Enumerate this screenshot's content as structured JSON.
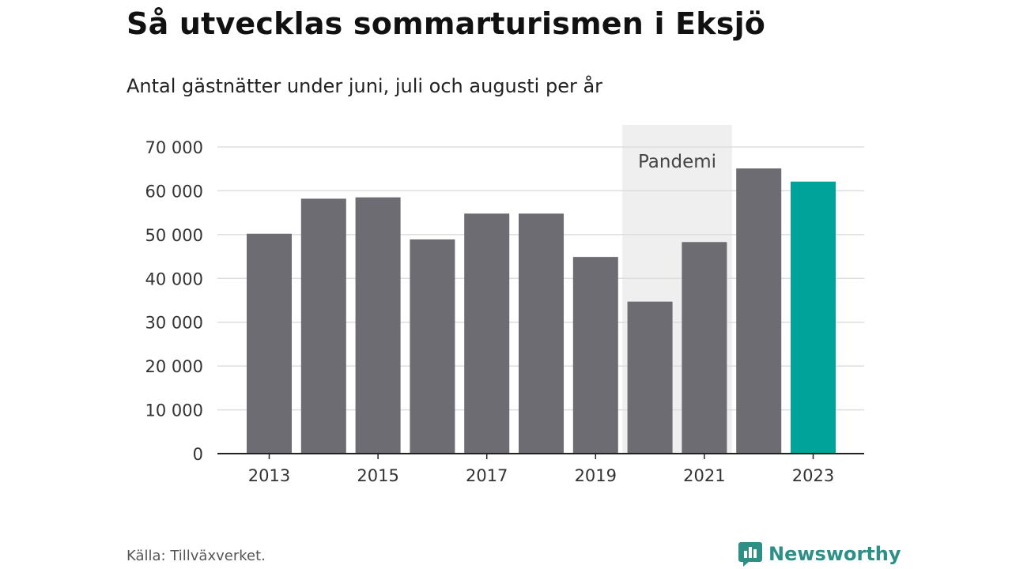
{
  "header": {
    "title": "Så utvecklas sommarturismen i Eksjö",
    "subtitle": "Antal gästnätter under juni, juli och augusti per år"
  },
  "footer": {
    "source": "Källa: Tillväxverket.",
    "brand": "Newsworthy"
  },
  "colors": {
    "bar": "#6d6c72",
    "highlight": "#00a39a",
    "shade": "#efefef",
    "grid": "#dddddd",
    "axis": "#222222",
    "brand": "#2e8f86"
  },
  "chart_data": {
    "type": "bar",
    "title": "Så utvecklas sommarturismen i Eksjö",
    "subtitle": "Antal gästnätter under juni, juli och augusti per år",
    "categories": [
      2013,
      2014,
      2015,
      2016,
      2017,
      2018,
      2019,
      2020,
      2021,
      2022,
      2023
    ],
    "values": [
      50200,
      58200,
      58500,
      48900,
      54800,
      54800,
      44900,
      34700,
      48300,
      65100,
      62100
    ],
    "highlight_index": 10,
    "x_tick_labels": [
      "2013",
      "2015",
      "2017",
      "2019",
      "2021",
      "2023"
    ],
    "y_ticks": [
      0,
      10000,
      20000,
      30000,
      40000,
      50000,
      60000,
      70000
    ],
    "y_tick_labels": [
      "0",
      "10 000",
      "20 000",
      "30 000",
      "40 000",
      "50 000",
      "60 000",
      "70 000"
    ],
    "ylim": [
      0,
      70000
    ],
    "grid": true,
    "shaded_region": {
      "label": "Pandemi",
      "from": 2020,
      "to": 2021
    },
    "xlabel": "",
    "ylabel": ""
  }
}
